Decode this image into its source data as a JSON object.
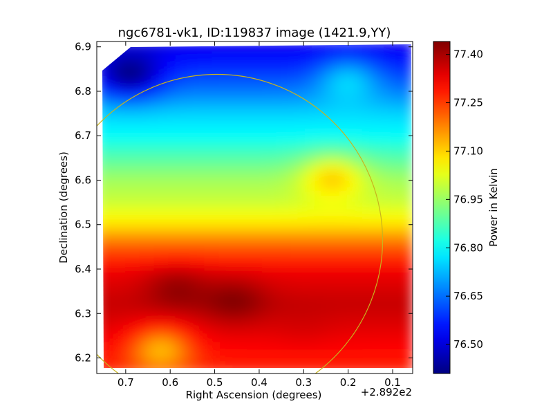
{
  "chart_data": {
    "type": "heatmap",
    "title": "ngc6781-vk1, ID:119837 image (1421.9,YY)",
    "xlabel": "Right Ascension (degrees)",
    "ylabel": "Declination (degrees)",
    "x_offset_label": "+2.892e2",
    "xlim": [
      0.765,
      0.055
    ],
    "ylim": [
      6.165,
      6.912
    ],
    "x_ticks": [
      0.7,
      0.6,
      0.5,
      0.4,
      0.3,
      0.2,
      0.1
    ],
    "x_tick_labels": [
      "0.7",
      "0.6",
      "0.5",
      "0.4",
      "0.3",
      "0.2",
      "0.1"
    ],
    "y_ticks": [
      6.2,
      6.3,
      6.4,
      6.5,
      6.6,
      6.7,
      6.8,
      6.9
    ],
    "y_tick_labels": [
      "6.2",
      "6.3",
      "6.4",
      "6.5",
      "6.6",
      "6.7",
      "6.8",
      "6.9"
    ],
    "colorbar": {
      "label": "Power in Kelvin",
      "colormap": "jet",
      "vmin": 76.41,
      "vmax": 77.44,
      "ticks": [
        76.5,
        76.65,
        76.8,
        76.95,
        77.1,
        77.25,
        77.4
      ],
      "tick_labels": [
        "76.50",
        "76.65",
        "76.80",
        "76.95",
        "77.10",
        "77.25",
        "77.40"
      ]
    },
    "grid": false,
    "dec_profile": {
      "dec": [
        6.18,
        6.25,
        6.32,
        6.39,
        6.45,
        6.5,
        6.55,
        6.6,
        6.65,
        6.7,
        6.75,
        6.8,
        6.85,
        6.9
      ],
      "kelvin": [
        77.28,
        77.33,
        77.37,
        77.33,
        77.22,
        77.08,
        77.0,
        76.96,
        76.88,
        76.8,
        76.75,
        76.66,
        76.58,
        76.52
      ]
    },
    "features": [
      {
        "ra": 0.585,
        "dec": 6.36,
        "kelvin": 77.42
      },
      {
        "ra": 0.455,
        "dec": 6.33,
        "kelvin": 77.44
      },
      {
        "ra": 0.3,
        "dec": 6.26,
        "kelvin": 77.35
      },
      {
        "ra": 0.69,
        "dec": 6.83,
        "kelvin": 76.42
      },
      {
        "ra": 0.235,
        "dec": 6.61,
        "kelvin": 77.1
      },
      {
        "ra": 0.2,
        "dec": 6.83,
        "kelvin": 76.75
      },
      {
        "ra": 0.62,
        "dec": 6.22,
        "kelvin": 77.12
      }
    ],
    "circle": {
      "center_ra": 0.495,
      "center_dec": 6.465,
      "radius_deg": 0.373,
      "color": "#c8b41e"
    }
  }
}
